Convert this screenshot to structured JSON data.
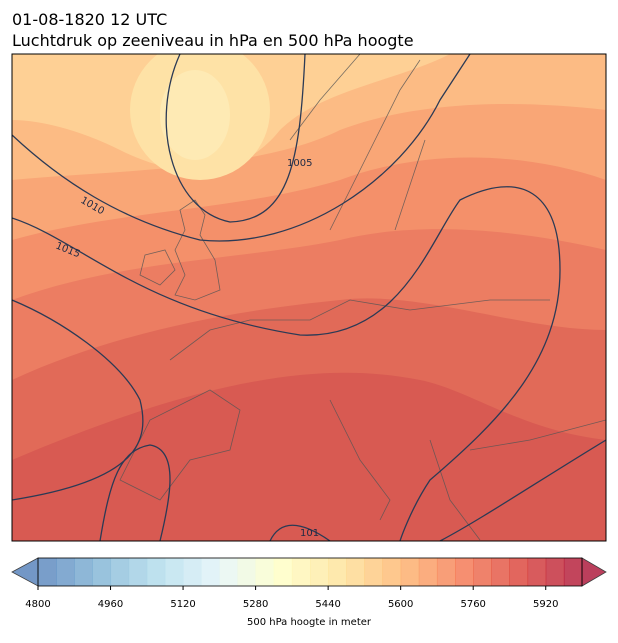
{
  "title": {
    "time": "01-08-1820 12 UTC",
    "subtitle": "Luchtdruk op zeeniveau in hPa en 500 hPa hoogte"
  },
  "isobar_labels": [
    "1005",
    "1010",
    "1015",
    "101"
  ],
  "colorbar": {
    "label": "500 hPa hoogte in meter",
    "range": [
      4800,
      6000
    ],
    "step": 40,
    "ticks": [
      4800,
      4960,
      5120,
      5280,
      5440,
      5600,
      5760,
      5920
    ]
  }
}
